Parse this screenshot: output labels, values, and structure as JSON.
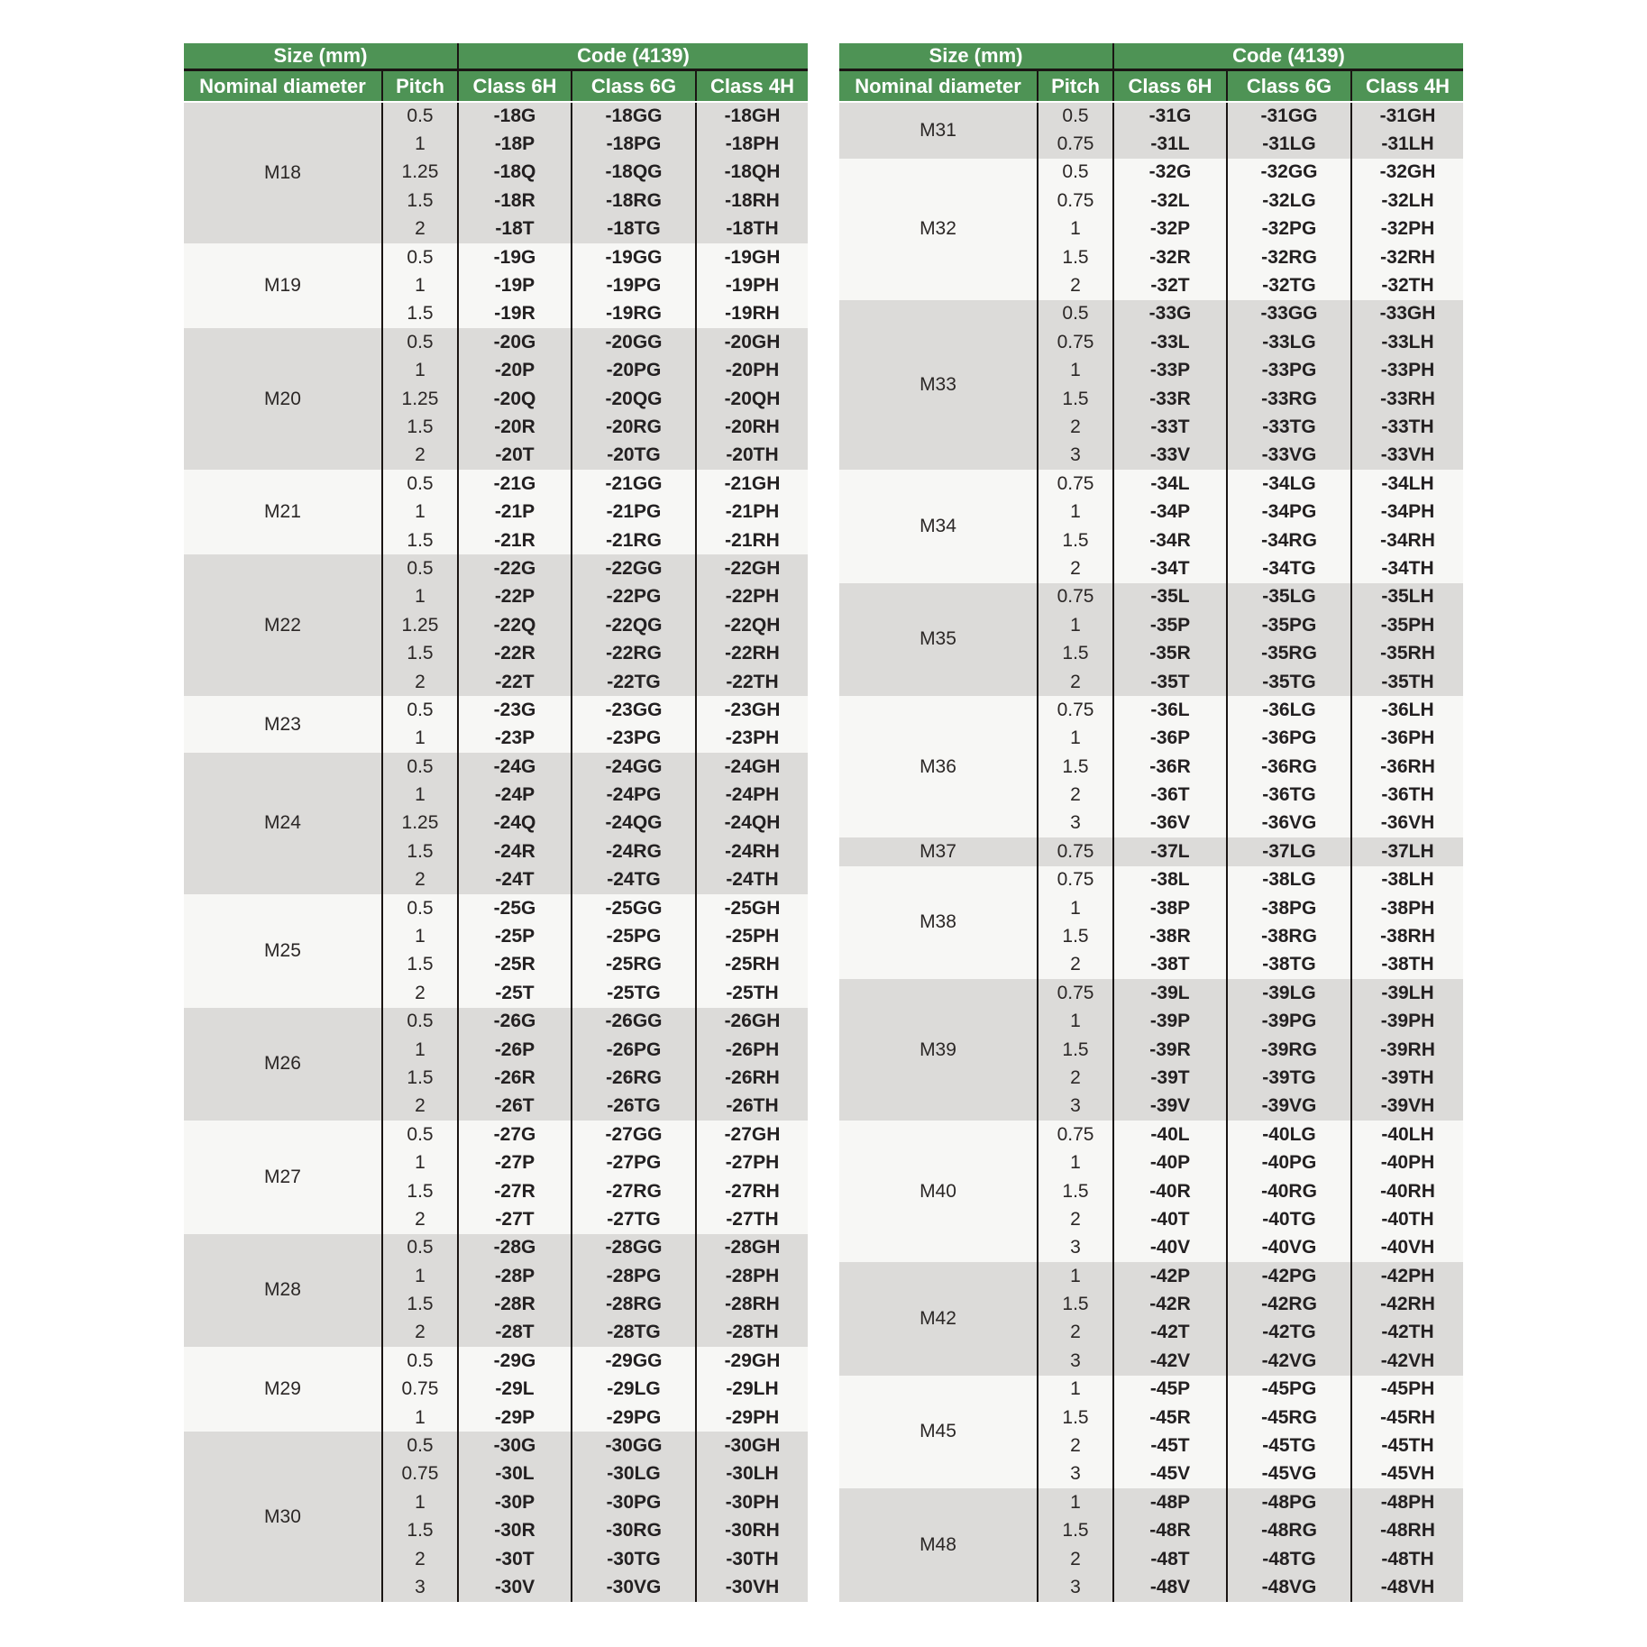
{
  "colors": {
    "header_green": "#4e9355",
    "header_text": "#ffffff",
    "row_shaded": "#dcdbd9",
    "row_plain": "#f7f7f5",
    "grid_line": "#1a1513",
    "body_text": "#2b2726",
    "code_text": "#232021"
  },
  "tables": [
    {
      "name": "metric-thread-codes-m18-m30",
      "header": {
        "size_group_label": "Size (mm)",
        "code_group_label": "Code (4139)",
        "columns": [
          "Nominal diameter",
          "Pitch",
          "Class 6H",
          "Class 6G",
          "Class 4H"
        ]
      },
      "groups": [
        {
          "diameter": "M18",
          "rows": [
            [
              "0.5",
              "-18G",
              "-18GG",
              "-18GH"
            ],
            [
              "1",
              "-18P",
              "-18PG",
              "-18PH"
            ],
            [
              "1.25",
              "-18Q",
              "-18QG",
              "-18QH"
            ],
            [
              "1.5",
              "-18R",
              "-18RG",
              "-18RH"
            ],
            [
              "2",
              "-18T",
              "-18TG",
              "-18TH"
            ]
          ]
        },
        {
          "diameter": "M19",
          "rows": [
            [
              "0.5",
              "-19G",
              "-19GG",
              "-19GH"
            ],
            [
              "1",
              "-19P",
              "-19PG",
              "-19PH"
            ],
            [
              "1.5",
              "-19R",
              "-19RG",
              "-19RH"
            ]
          ]
        },
        {
          "diameter": "M20",
          "rows": [
            [
              "0.5",
              "-20G",
              "-20GG",
              "-20GH"
            ],
            [
              "1",
              "-20P",
              "-20PG",
              "-20PH"
            ],
            [
              "1.25",
              "-20Q",
              "-20QG",
              "-20QH"
            ],
            [
              "1.5",
              "-20R",
              "-20RG",
              "-20RH"
            ],
            [
              "2",
              "-20T",
              "-20TG",
              "-20TH"
            ]
          ]
        },
        {
          "diameter": "M21",
          "rows": [
            [
              "0.5",
              "-21G",
              "-21GG",
              "-21GH"
            ],
            [
              "1",
              "-21P",
              "-21PG",
              "-21PH"
            ],
            [
              "1.5",
              "-21R",
              "-21RG",
              "-21RH"
            ]
          ]
        },
        {
          "diameter": "M22",
          "rows": [
            [
              "0.5",
              "-22G",
              "-22GG",
              "-22GH"
            ],
            [
              "1",
              "-22P",
              "-22PG",
              "-22PH"
            ],
            [
              "1.25",
              "-22Q",
              "-22QG",
              "-22QH"
            ],
            [
              "1.5",
              "-22R",
              "-22RG",
              "-22RH"
            ],
            [
              "2",
              "-22T",
              "-22TG",
              "-22TH"
            ]
          ]
        },
        {
          "diameter": "M23",
          "rows": [
            [
              "0.5",
              "-23G",
              "-23GG",
              "-23GH"
            ],
            [
              "1",
              "-23P",
              "-23PG",
              "-23PH"
            ]
          ]
        },
        {
          "diameter": "M24",
          "rows": [
            [
              "0.5",
              "-24G",
              "-24GG",
              "-24GH"
            ],
            [
              "1",
              "-24P",
              "-24PG",
              "-24PH"
            ],
            [
              "1.25",
              "-24Q",
              "-24QG",
              "-24QH"
            ],
            [
              "1.5",
              "-24R",
              "-24RG",
              "-24RH"
            ],
            [
              "2",
              "-24T",
              "-24TG",
              "-24TH"
            ]
          ]
        },
        {
          "diameter": "M25",
          "rows": [
            [
              "0.5",
              "-25G",
              "-25GG",
              "-25GH"
            ],
            [
              "1",
              "-25P",
              "-25PG",
              "-25PH"
            ],
            [
              "1.5",
              "-25R",
              "-25RG",
              "-25RH"
            ],
            [
              "2",
              "-25T",
              "-25TG",
              "-25TH"
            ]
          ]
        },
        {
          "diameter": "M26",
          "rows": [
            [
              "0.5",
              "-26G",
              "-26GG",
              "-26GH"
            ],
            [
              "1",
              "-26P",
              "-26PG",
              "-26PH"
            ],
            [
              "1.5",
              "-26R",
              "-26RG",
              "-26RH"
            ],
            [
              "2",
              "-26T",
              "-26TG",
              "-26TH"
            ]
          ]
        },
        {
          "diameter": "M27",
          "rows": [
            [
              "0.5",
              "-27G",
              "-27GG",
              "-27GH"
            ],
            [
              "1",
              "-27P",
              "-27PG",
              "-27PH"
            ],
            [
              "1.5",
              "-27R",
              "-27RG",
              "-27RH"
            ],
            [
              "2",
              "-27T",
              "-27TG",
              "-27TH"
            ]
          ]
        },
        {
          "diameter": "M28",
          "rows": [
            [
              "0.5",
              "-28G",
              "-28GG",
              "-28GH"
            ],
            [
              "1",
              "-28P",
              "-28PG",
              "-28PH"
            ],
            [
              "1.5",
              "-28R",
              "-28RG",
              "-28RH"
            ],
            [
              "2",
              "-28T",
              "-28TG",
              "-28TH"
            ]
          ]
        },
        {
          "diameter": "M29",
          "rows": [
            [
              "0.5",
              "-29G",
              "-29GG",
              "-29GH"
            ],
            [
              "0.75",
              "-29L",
              "-29LG",
              "-29LH"
            ],
            [
              "1",
              "-29P",
              "-29PG",
              "-29PH"
            ]
          ]
        },
        {
          "diameter": "M30",
          "rows": [
            [
              "0.5",
              "-30G",
              "-30GG",
              "-30GH"
            ],
            [
              "0.75",
              "-30L",
              "-30LG",
              "-30LH"
            ],
            [
              "1",
              "-30P",
              "-30PG",
              "-30PH"
            ],
            [
              "1.5",
              "-30R",
              "-30RG",
              "-30RH"
            ],
            [
              "2",
              "-30T",
              "-30TG",
              "-30TH"
            ],
            [
              "3",
              "-30V",
              "-30VG",
              "-30VH"
            ]
          ]
        }
      ]
    },
    {
      "name": "metric-thread-codes-m31-m48",
      "header": {
        "size_group_label": "Size (mm)",
        "code_group_label": "Code (4139)",
        "columns": [
          "Nominal diameter",
          "Pitch",
          "Class 6H",
          "Class 6G",
          "Class 4H"
        ]
      },
      "groups": [
        {
          "diameter": "M31",
          "rows": [
            [
              "0.5",
              "-31G",
              "-31GG",
              "-31GH"
            ],
            [
              "0.75",
              "-31L",
              "-31LG",
              "-31LH"
            ]
          ]
        },
        {
          "diameter": "M32",
          "rows": [
            [
              "0.5",
              "-32G",
              "-32GG",
              "-32GH"
            ],
            [
              "0.75",
              "-32L",
              "-32LG",
              "-32LH"
            ],
            [
              "1",
              "-32P",
              "-32PG",
              "-32PH"
            ],
            [
              "1.5",
              "-32R",
              "-32RG",
              "-32RH"
            ],
            [
              "2",
              "-32T",
              "-32TG",
              "-32TH"
            ]
          ]
        },
        {
          "diameter": "M33",
          "rows": [
            [
              "0.5",
              "-33G",
              "-33GG",
              "-33GH"
            ],
            [
              "0.75",
              "-33L",
              "-33LG",
              "-33LH"
            ],
            [
              "1",
              "-33P",
              "-33PG",
              "-33PH"
            ],
            [
              "1.5",
              "-33R",
              "-33RG",
              "-33RH"
            ],
            [
              "2",
              "-33T",
              "-33TG",
              "-33TH"
            ],
            [
              "3",
              "-33V",
              "-33VG",
              "-33VH"
            ]
          ]
        },
        {
          "diameter": "M34",
          "rows": [
            [
              "0.75",
              "-34L",
              "-34LG",
              "-34LH"
            ],
            [
              "1",
              "-34P",
              "-34PG",
              "-34PH"
            ],
            [
              "1.5",
              "-34R",
              "-34RG",
              "-34RH"
            ],
            [
              "2",
              "-34T",
              "-34TG",
              "-34TH"
            ]
          ]
        },
        {
          "diameter": "M35",
          "rows": [
            [
              "0.75",
              "-35L",
              "-35LG",
              "-35LH"
            ],
            [
              "1",
              "-35P",
              "-35PG",
              "-35PH"
            ],
            [
              "1.5",
              "-35R",
              "-35RG",
              "-35RH"
            ],
            [
              "2",
              "-35T",
              "-35TG",
              "-35TH"
            ]
          ]
        },
        {
          "diameter": "M36",
          "rows": [
            [
              "0.75",
              "-36L",
              "-36LG",
              "-36LH"
            ],
            [
              "1",
              "-36P",
              "-36PG",
              "-36PH"
            ],
            [
              "1.5",
              "-36R",
              "-36RG",
              "-36RH"
            ],
            [
              "2",
              "-36T",
              "-36TG",
              "-36TH"
            ],
            [
              "3",
              "-36V",
              "-36VG",
              "-36VH"
            ]
          ]
        },
        {
          "diameter": "M37",
          "rows": [
            [
              "0.75",
              "-37L",
              "-37LG",
              "-37LH"
            ]
          ]
        },
        {
          "diameter": "M38",
          "rows": [
            [
              "0.75",
              "-38L",
              "-38LG",
              "-38LH"
            ],
            [
              "1",
              "-38P",
              "-38PG",
              "-38PH"
            ],
            [
              "1.5",
              "-38R",
              "-38RG",
              "-38RH"
            ],
            [
              "2",
              "-38T",
              "-38TG",
              "-38TH"
            ]
          ]
        },
        {
          "diameter": "M39",
          "rows": [
            [
              "0.75",
              "-39L",
              "-39LG",
              "-39LH"
            ],
            [
              "1",
              "-39P",
              "-39PG",
              "-39PH"
            ],
            [
              "1.5",
              "-39R",
              "-39RG",
              "-39RH"
            ],
            [
              "2",
              "-39T",
              "-39TG",
              "-39TH"
            ],
            [
              "3",
              "-39V",
              "-39VG",
              "-39VH"
            ]
          ]
        },
        {
          "diameter": "M40",
          "rows": [
            [
              "0.75",
              "-40L",
              "-40LG",
              "-40LH"
            ],
            [
              "1",
              "-40P",
              "-40PG",
              "-40PH"
            ],
            [
              "1.5",
              "-40R",
              "-40RG",
              "-40RH"
            ],
            [
              "2",
              "-40T",
              "-40TG",
              "-40TH"
            ],
            [
              "3",
              "-40V",
              "-40VG",
              "-40VH"
            ]
          ]
        },
        {
          "diameter": "M42",
          "rows": [
            [
              "1",
              "-42P",
              "-42PG",
              "-42PH"
            ],
            [
              "1.5",
              "-42R",
              "-42RG",
              "-42RH"
            ],
            [
              "2",
              "-42T",
              "-42TG",
              "-42TH"
            ],
            [
              "3",
              "-42V",
              "-42VG",
              "-42VH"
            ]
          ]
        },
        {
          "diameter": "M45",
          "rows": [
            [
              "1",
              "-45P",
              "-45PG",
              "-45PH"
            ],
            [
              "1.5",
              "-45R",
              "-45RG",
              "-45RH"
            ],
            [
              "2",
              "-45T",
              "-45TG",
              "-45TH"
            ],
            [
              "3",
              "-45V",
              "-45VG",
              "-45VH"
            ]
          ]
        },
        {
          "diameter": "M48",
          "rows": [
            [
              "1",
              "-48P",
              "-48PG",
              "-48PH"
            ],
            [
              "1.5",
              "-48R",
              "-48RG",
              "-48RH"
            ],
            [
              "2",
              "-48T",
              "-48TG",
              "-48TH"
            ],
            [
              "3",
              "-48V",
              "-48VG",
              "-48VH"
            ]
          ]
        }
      ]
    }
  ]
}
